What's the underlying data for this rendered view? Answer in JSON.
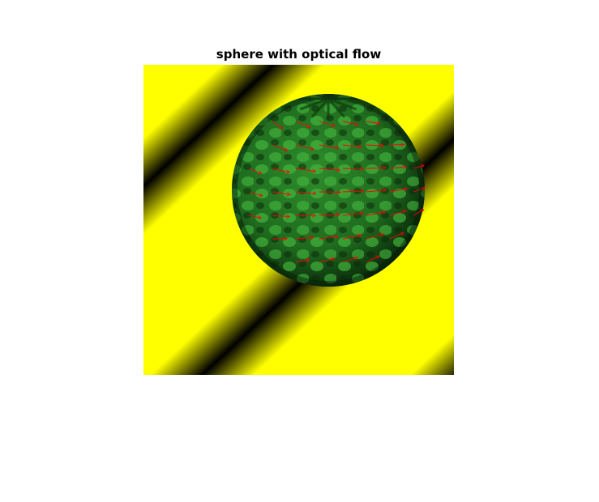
{
  "figure": {
    "title": "sphere with optical flow"
  },
  "colors": {
    "stripe_bright": "#ffff00",
    "stripe_dark": "#000000",
    "sphere_light": "#3fae3a",
    "sphere_dark": "#0a2a0a",
    "flow_arrow": "#ff0000",
    "background": "#ffffff"
  }
}
